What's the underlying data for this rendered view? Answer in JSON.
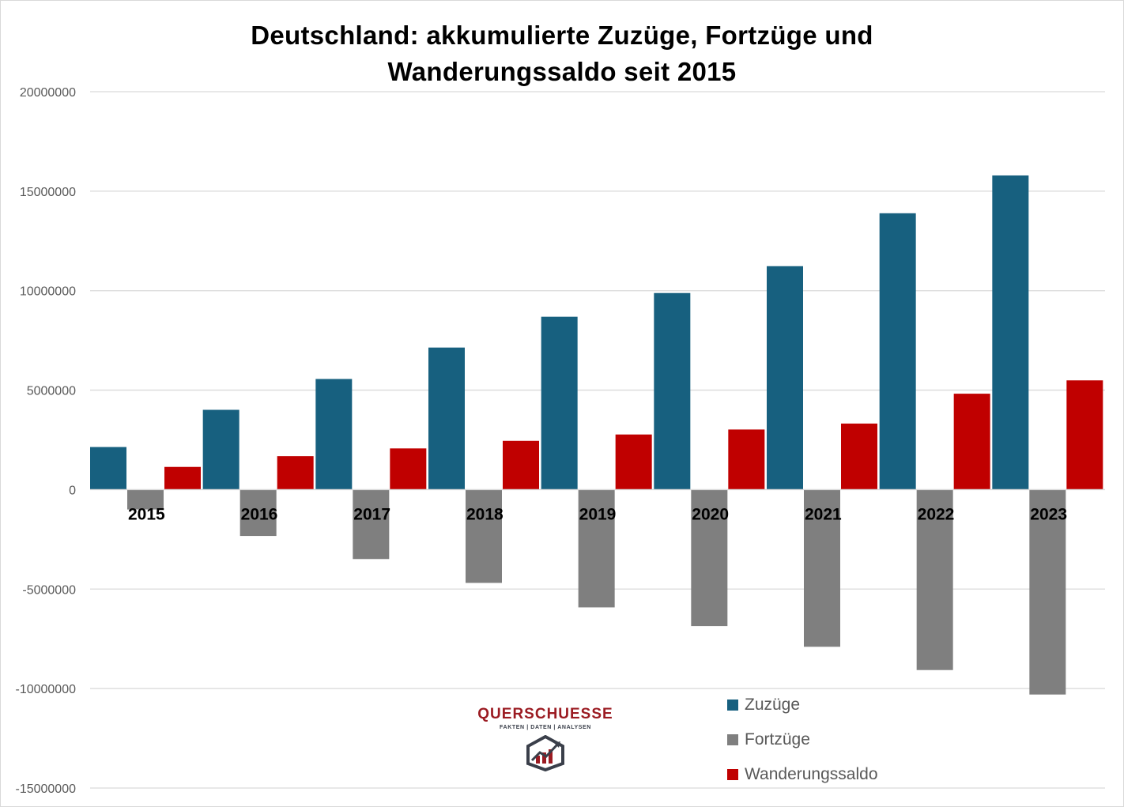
{
  "chart_data": {
    "type": "bar",
    "title_line1": "Deutschland: akkumulierte Zuzüge, Fortzüge und",
    "title_line2": "Wanderungssaldo seit 2015",
    "categories": [
      "2015",
      "2016",
      "2017",
      "2018",
      "2019",
      "2020",
      "2021",
      "2022",
      "2023"
    ],
    "series": [
      {
        "name": "Zuzüge",
        "color": "#17607f",
        "values": [
          2140000,
          4010000,
          5560000,
          7140000,
          8690000,
          9880000,
          11230000,
          13890000,
          15790000
        ]
      },
      {
        "name": "Fortzüge",
        "color": "#7f7f7f",
        "values": [
          -1000000,
          -2330000,
          -3490000,
          -4690000,
          -5920000,
          -6860000,
          -7900000,
          -9070000,
          -10300000
        ]
      },
      {
        "name": "Wanderungssaldo",
        "color": "#c00000",
        "values": [
          1140000,
          1680000,
          2070000,
          2450000,
          2770000,
          3020000,
          3320000,
          4820000,
          5490000
        ]
      }
    ],
    "ylim": [
      -15000000,
      20000000
    ],
    "yticks": [
      20000000,
      15000000,
      10000000,
      5000000,
      0,
      -5000000,
      -10000000,
      -15000000
    ],
    "ytick_labels": [
      "20000000",
      "15000000",
      "10000000",
      "5000000",
      "0",
      "-5000000",
      "-10000000",
      "-15000000"
    ],
    "grid": true,
    "legend_position": "bottom-right"
  },
  "logo": {
    "name": "QUERSCHUESSE",
    "tagline": "FAKTEN | DATEN | ANALYSEN",
    "icon": "chart-house-logo-icon"
  }
}
